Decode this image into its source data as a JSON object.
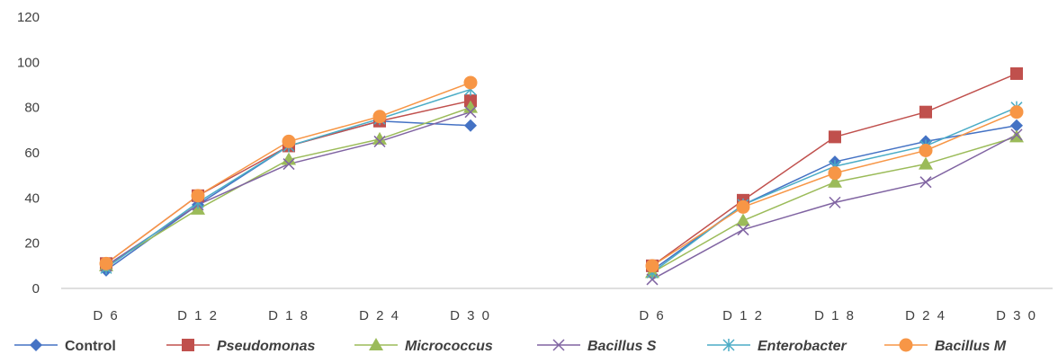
{
  "chart_data": {
    "type": "line",
    "categories": [
      "D 6",
      "D 1 2",
      "D 1 8",
      "D 2 4",
      "D 3 0"
    ],
    "ylim": [
      0,
      120
    ],
    "yticks": [
      "0",
      "20",
      "40",
      "60",
      "80",
      "100",
      "120"
    ],
    "grid": false,
    "legend_position": "bottom",
    "panels": [
      {
        "series": [
          {
            "name": "Control",
            "values": [
              8,
              37,
              63,
              74,
              72
            ]
          },
          {
            "name": "Pseudomonas",
            "values": [
              11,
              41,
              63,
              74,
              83
            ]
          },
          {
            "name": "Micrococcus",
            "values": [
              10,
              35,
              57,
              66,
              80
            ]
          },
          {
            "name": "Bacillus S",
            "values": [
              10,
              37,
              55,
              65,
              78
            ]
          },
          {
            "name": "Enterobacter",
            "values": [
              9,
              38,
              63,
              75,
              88
            ]
          },
          {
            "name": "Bacillus M",
            "values": [
              11,
              41,
              65,
              76,
              91
            ]
          }
        ]
      },
      {
        "series": [
          {
            "name": "Control",
            "values": [
              8,
              37,
              56,
              65,
              72
            ]
          },
          {
            "name": "Pseudomonas",
            "values": [
              10,
              39,
              67,
              78,
              95
            ]
          },
          {
            "name": "Micrococcus",
            "values": [
              7,
              30,
              47,
              55,
              67
            ]
          },
          {
            "name": "Bacillus S",
            "values": [
              4,
              26,
              38,
              47,
              68
            ]
          },
          {
            "name": "Enterobacter",
            "values": [
              7,
              37,
              54,
              63,
              80
            ]
          },
          {
            "name": "Bacillus M",
            "values": [
              10,
              36,
              51,
              61,
              78
            ]
          }
        ]
      }
    ],
    "legend": [
      {
        "name": "Control",
        "color": "#4472C4",
        "marker": "diamond",
        "italic": false
      },
      {
        "name": "Pseudomonas",
        "color": "#C0504D",
        "marker": "square",
        "italic": true
      },
      {
        "name": "Micrococcus",
        "color": "#9BBB59",
        "marker": "triangle",
        "italic": true
      },
      {
        "name": "Bacillus S",
        "color": "#8064A2",
        "marker": "x",
        "italic": true
      },
      {
        "name": "Enterobacter",
        "color": "#4BACC6",
        "marker": "star",
        "italic": true
      },
      {
        "name": "Bacillus M",
        "color": "#F79646",
        "marker": "circle",
        "italic": true
      }
    ]
  }
}
